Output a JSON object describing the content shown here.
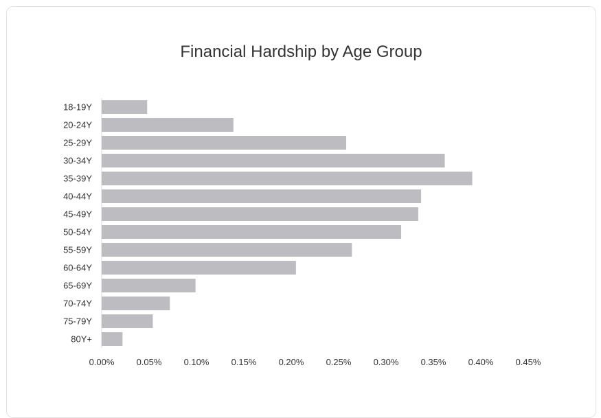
{
  "colors": {
    "bar": "#bdbcc1",
    "axis": "#d9d9d9",
    "text": "#333333",
    "card_border": "#e3e3e3"
  },
  "chart_data": {
    "type": "bar",
    "orientation": "horizontal",
    "title": "Financial Hardship by Age Group",
    "xlabel": "",
    "ylabel": "",
    "categories": [
      "18-19Y",
      "20-24Y",
      "25-29Y",
      "30-34Y",
      "35-39Y",
      "40-44Y",
      "45-49Y",
      "50-54Y",
      "55-59Y",
      "60-64Y",
      "65-69Y",
      "70-74Y",
      "75-79Y",
      "80Y+"
    ],
    "values": [
      0.048,
      0.139,
      0.258,
      0.362,
      0.391,
      0.337,
      0.334,
      0.316,
      0.264,
      0.205,
      0.099,
      0.072,
      0.054,
      0.022
    ],
    "value_unit": "percent",
    "xlim": [
      0,
      0.45
    ],
    "xticks": [
      0.0,
      0.05,
      0.1,
      0.15,
      0.2,
      0.25,
      0.3,
      0.35,
      0.4,
      0.45
    ],
    "xtick_labels": [
      "0.00%",
      "0.05%",
      "0.10%",
      "0.15%",
      "0.20%",
      "0.25%",
      "0.30%",
      "0.35%",
      "0.40%",
      "0.45%"
    ],
    "grid": false,
    "legend": "none"
  }
}
